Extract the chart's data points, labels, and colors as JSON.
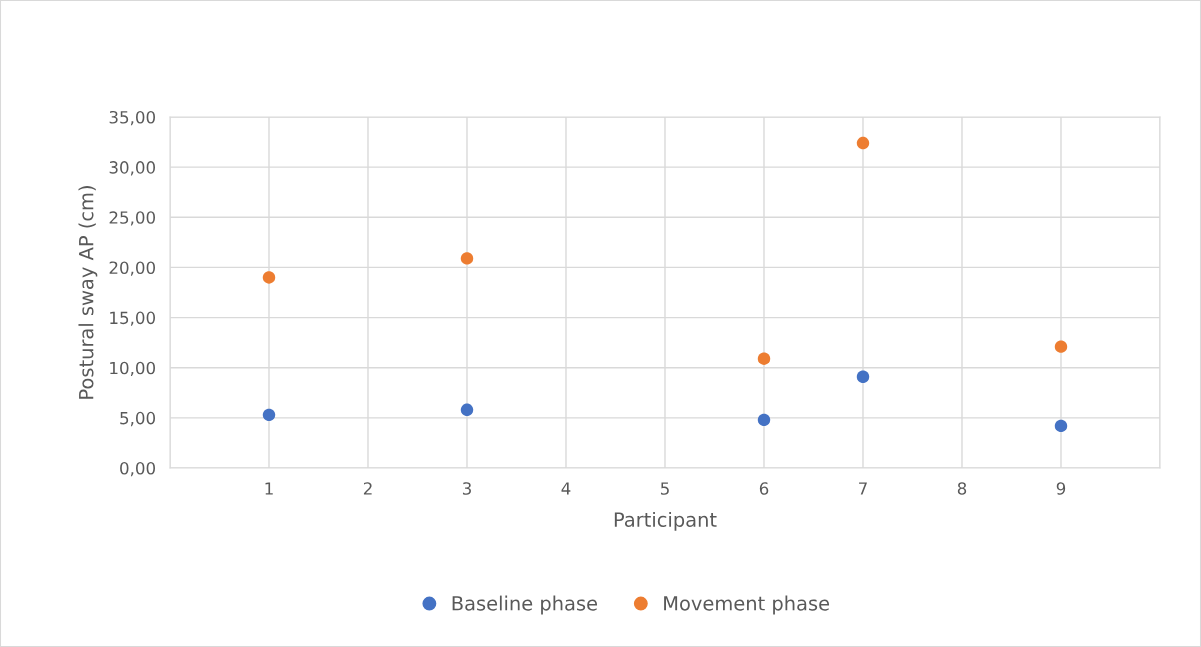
{
  "chart_data": {
    "type": "scatter",
    "xlabel": "Participant",
    "ylabel": "Postural sway AP (cm)",
    "x": [
      1,
      3,
      6,
      7,
      9
    ],
    "series": [
      {
        "name": "Baseline phase",
        "color": "#4472c4",
        "values": [
          5.3,
          5.8,
          4.8,
          9.1,
          4.2
        ]
      },
      {
        "name": "Movement phase",
        "color": "#ed7d31",
        "values": [
          19.0,
          20.9,
          10.9,
          32.4,
          12.1
        ]
      }
    ],
    "xlim": [
      0,
      10
    ],
    "xticks": [
      {
        "value": 0,
        "label": null
      },
      1,
      2,
      3,
      4,
      5,
      6,
      7,
      8,
      9,
      {
        "value": 10,
        "label": null
      }
    ],
    "ylim": [
      0,
      35
    ],
    "yticks": [
      {
        "value": 0,
        "label": "0,00"
      },
      {
        "value": 5,
        "label": "5,00"
      },
      {
        "value": 10,
        "label": "10,00"
      },
      {
        "value": 15,
        "label": "15,00"
      },
      {
        "value": 20,
        "label": "20,00"
      },
      {
        "value": 25,
        "label": "25,00"
      },
      {
        "value": 30,
        "label": "30,00"
      },
      {
        "value": 35,
        "label": "35,00"
      }
    ],
    "grid": true,
    "legend": "bottom",
    "marker": "circle"
  }
}
